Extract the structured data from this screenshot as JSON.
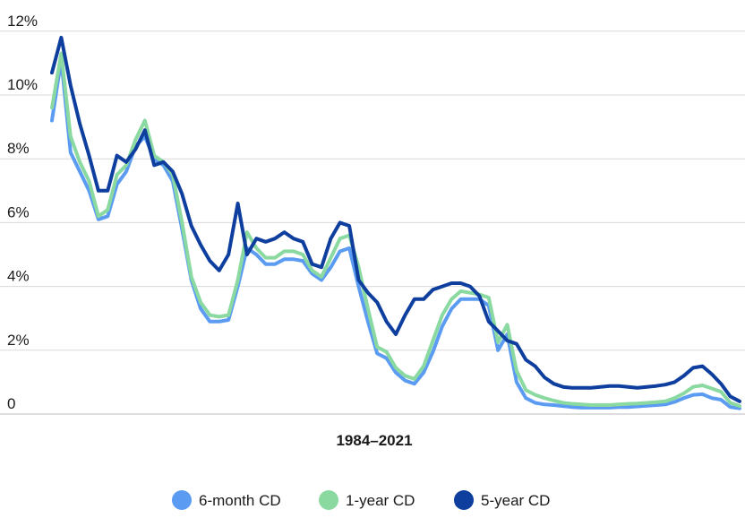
{
  "chart_data": {
    "type": "line",
    "title": "",
    "xlabel": "1984–2021",
    "ylabel": "",
    "ylim": [
      0,
      12.5
    ],
    "y_ticks": [
      {
        "value": 0,
        "label": "0"
      },
      {
        "value": 2,
        "label": "2%"
      },
      {
        "value": 4,
        "label": "4%"
      },
      {
        "value": 6,
        "label": "6%"
      },
      {
        "value": 8,
        "label": "8%"
      },
      {
        "value": 10,
        "label": "10%"
      },
      {
        "value": 12,
        "label": "12%"
      }
    ],
    "grid": true,
    "legend_position": "bottom",
    "x": [
      1984,
      1984.5,
      1985,
      1985.5,
      1986,
      1986.5,
      1987,
      1987.5,
      1988,
      1988.5,
      1989,
      1989.5,
      1990,
      1990.5,
      1991,
      1991.5,
      1992,
      1992.5,
      1993,
      1993.5,
      1994,
      1994.5,
      1995,
      1995.5,
      1996,
      1996.5,
      1997,
      1997.5,
      1998,
      1998.5,
      1999,
      1999.5,
      2000,
      2000.5,
      2001,
      2001.5,
      2002,
      2002.5,
      2003,
      2003.5,
      2004,
      2004.5,
      2005,
      2005.5,
      2006,
      2006.5,
      2007,
      2007.5,
      2008,
      2008.5,
      2009,
      2009.5,
      2010,
      2010.5,
      2011,
      2011.5,
      2012,
      2012.5,
      2013,
      2013.5,
      2014,
      2014.5,
      2015,
      2015.5,
      2016,
      2016.5,
      2017,
      2017.5,
      2018,
      2018.5,
      2019,
      2019.5,
      2020,
      2020.5,
      2021
    ],
    "series": [
      {
        "name": "6-month CD",
        "color": "#5b9cf2",
        "values": [
          9.2,
          11.1,
          8.2,
          7.6,
          7.0,
          6.1,
          6.2,
          7.2,
          7.6,
          8.4,
          8.7,
          8.0,
          7.8,
          7.3,
          5.8,
          4.2,
          3.3,
          2.9,
          2.9,
          2.95,
          4.0,
          5.2,
          5.0,
          4.7,
          4.7,
          4.85,
          4.85,
          4.8,
          4.4,
          4.2,
          4.6,
          5.1,
          5.2,
          4.0,
          2.9,
          1.9,
          1.75,
          1.3,
          1.05,
          0.95,
          1.3,
          1.95,
          2.75,
          3.3,
          3.6,
          3.6,
          3.6,
          3.4,
          2.0,
          2.5,
          1.0,
          0.5,
          0.35,
          0.3,
          0.28,
          0.25,
          0.22,
          0.2,
          0.2,
          0.2,
          0.2,
          0.22,
          0.22,
          0.24,
          0.26,
          0.28,
          0.3,
          0.38,
          0.5,
          0.6,
          0.62,
          0.5,
          0.45,
          0.22,
          0.18
        ]
      },
      {
        "name": "1-year CD",
        "color": "#8ad9a1",
        "values": [
          9.6,
          11.3,
          8.7,
          7.9,
          7.3,
          6.2,
          6.4,
          7.5,
          7.8,
          8.6,
          9.2,
          8.1,
          7.9,
          7.5,
          6.0,
          4.3,
          3.5,
          3.1,
          3.05,
          3.1,
          4.2,
          5.7,
          5.2,
          4.9,
          4.9,
          5.1,
          5.1,
          5.0,
          4.5,
          4.3,
          4.9,
          5.5,
          5.6,
          4.6,
          3.3,
          2.1,
          1.95,
          1.45,
          1.2,
          1.1,
          1.5,
          2.3,
          3.1,
          3.6,
          3.85,
          3.8,
          3.75,
          3.65,
          2.25,
          2.8,
          1.35,
          0.75,
          0.6,
          0.5,
          0.42,
          0.35,
          0.32,
          0.3,
          0.28,
          0.28,
          0.28,
          0.3,
          0.32,
          0.33,
          0.35,
          0.37,
          0.4,
          0.5,
          0.65,
          0.85,
          0.9,
          0.8,
          0.7,
          0.35,
          0.25
        ]
      },
      {
        "name": "5-year CD",
        "color": "#0e3f9e",
        "values": [
          10.7,
          11.8,
          10.3,
          9.1,
          8.1,
          7.0,
          7.0,
          8.1,
          7.9,
          8.3,
          8.9,
          7.8,
          7.9,
          7.6,
          6.9,
          5.9,
          5.3,
          4.8,
          4.5,
          5.0,
          6.6,
          5.0,
          5.5,
          5.4,
          5.5,
          5.7,
          5.5,
          5.4,
          4.7,
          4.6,
          5.5,
          6.0,
          5.9,
          4.2,
          3.8,
          3.5,
          2.9,
          2.5,
          3.1,
          3.6,
          3.6,
          3.9,
          4.0,
          4.1,
          4.1,
          4.0,
          3.7,
          2.9,
          2.6,
          2.3,
          2.2,
          1.7,
          1.5,
          1.15,
          0.95,
          0.85,
          0.82,
          0.82,
          0.82,
          0.85,
          0.88,
          0.88,
          0.85,
          0.82,
          0.85,
          0.88,
          0.92,
          1.0,
          1.2,
          1.45,
          1.5,
          1.25,
          0.95,
          0.55,
          0.4
        ]
      }
    ]
  }
}
